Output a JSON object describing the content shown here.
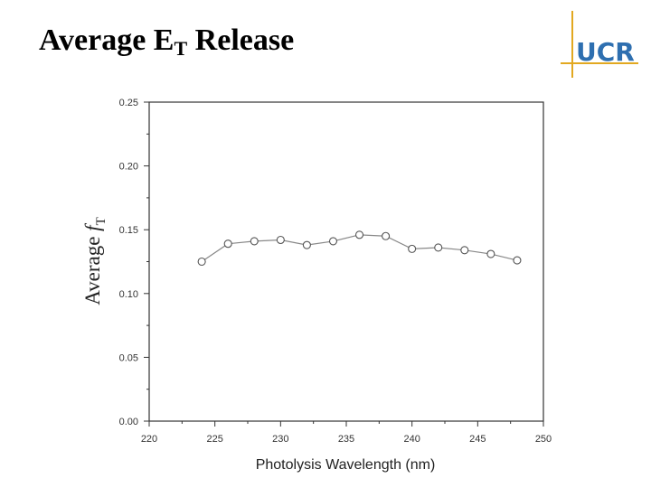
{
  "slide": {
    "title_main": "Average E",
    "title_sub": "T",
    "title_rest": " Release",
    "logo_text": "UCR"
  },
  "colors": {
    "logo_gold": "#e2a820",
    "logo_blue": "#2e6fb0",
    "line": "#888888",
    "marker_stroke": "#555555"
  },
  "chart_data": {
    "type": "line",
    "x": [
      224,
      226,
      228,
      230,
      232,
      234,
      236,
      238,
      240,
      242,
      244,
      246,
      248
    ],
    "series": [
      {
        "values": [
          0.125,
          0.139,
          0.141,
          0.142,
          0.138,
          0.141,
          0.146,
          0.145,
          0.135,
          0.136,
          0.134,
          0.131,
          0.126
        ]
      }
    ],
    "xlabel": "Photolysis Wavelength (nm)",
    "ylabel_prefix": "Average ",
    "ylabel_symbol": "f",
    "ylabel_sub": "T",
    "xlim": [
      220,
      250
    ],
    "ylim": [
      0,
      0.25
    ],
    "x_ticks": [
      "220",
      "225",
      "230",
      "235",
      "240",
      "245",
      "250"
    ],
    "y_ticks": [
      "0.00",
      "0.05",
      "0.10",
      "0.15",
      "0.20",
      "0.25"
    ],
    "grid": false,
    "marker": "open-circle"
  }
}
